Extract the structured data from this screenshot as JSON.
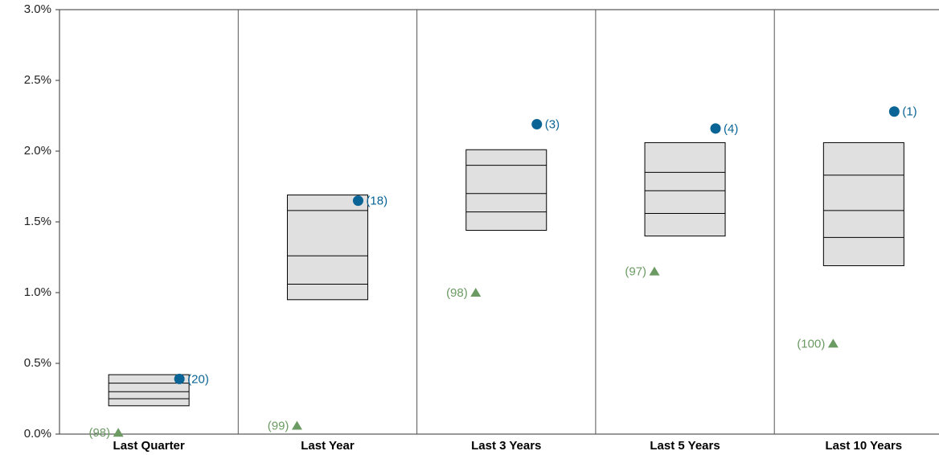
{
  "chart_data": {
    "type": "box",
    "categories": [
      "Last Quarter",
      "Last Year",
      "Last 3 Years",
      "Last 5 Years",
      "Last 10 Years"
    ],
    "box_values": [
      [
        0.2,
        0.25,
        0.3,
        0.36,
        0.42
      ],
      [
        0.95,
        1.06,
        1.26,
        1.58,
        1.69
      ],
      [
        1.44,
        1.57,
        1.7,
        1.9,
        2.01
      ],
      [
        1.4,
        1.56,
        1.72,
        1.85,
        2.06
      ],
      [
        1.19,
        1.39,
        1.58,
        1.83,
        2.06
      ]
    ],
    "box_color": "#e0e0e0",
    "fund": {
      "color": "#0a6496",
      "values": [
        0.39,
        1.65,
        2.19,
        2.16,
        2.28
      ],
      "labels": [
        "(20)",
        "(18)",
        "(3)",
        "(4)",
        "(1)"
      ]
    },
    "benchmark": {
      "color": "#6b9a62",
      "values": [
        0.01,
        0.06,
        1.0,
        1.15,
        0.64
      ],
      "labels": [
        "(98)",
        "(99)",
        "(98)",
        "(97)",
        "(100)"
      ]
    },
    "ylim": [
      0,
      3
    ],
    "yticks": [
      {
        "value": 0,
        "label": "0.0%"
      },
      {
        "value": 0.5,
        "label": "0.5%"
      },
      {
        "value": 1,
        "label": "1.0%"
      },
      {
        "value": 1.5,
        "label": "1.5%"
      },
      {
        "value": 2,
        "label": "2.0%"
      },
      {
        "value": 2.5,
        "label": "2.5%"
      },
      {
        "value": 3,
        "label": "3.0%"
      }
    ]
  }
}
